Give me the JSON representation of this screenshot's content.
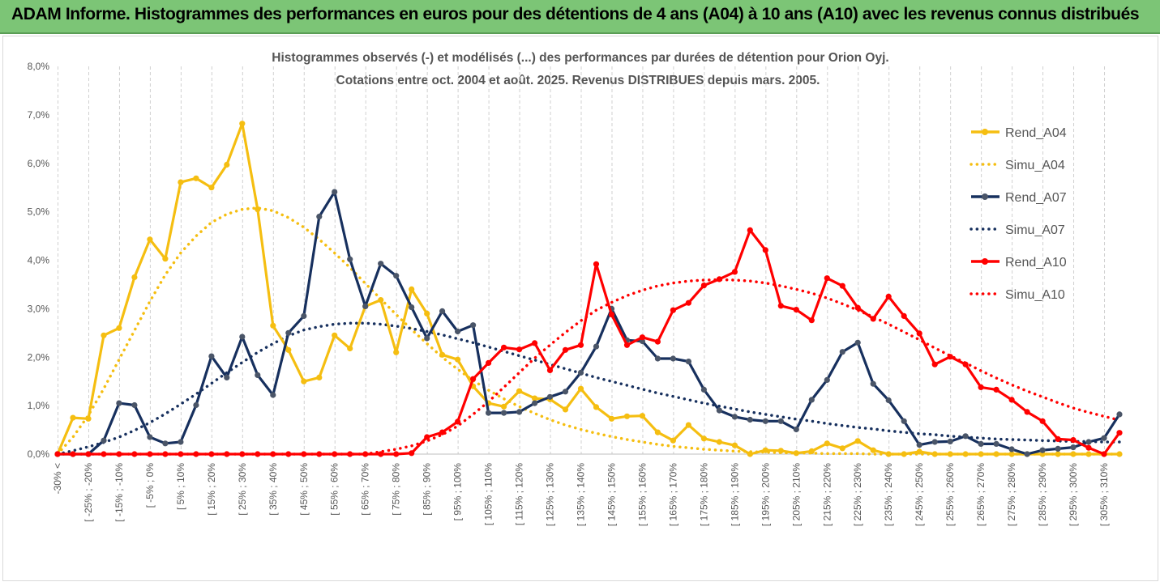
{
  "banner": {
    "title": "ADAM Informe. Histogrammes des performances en euros pour des détentions de 4 ans (A04) à 10 ans (A10) avec les revenus connus distribués"
  },
  "chart_data": {
    "type": "line",
    "title": "Histogrammes observés (-) et modélisés (...) des performances par durées de détention pour Orion Oyj.",
    "subtitle": "Cotations entre oct. 2004 et août. 2025. Revenus DISTRIBUES depuis mars. 2005.",
    "xlabel": "",
    "ylabel": "",
    "ylim": [
      0,
      0.08
    ],
    "y_ticks": [
      "0,0%",
      "1,0%",
      "2,0%",
      "3,0%",
      "4,0%",
      "5,0%",
      "6,0%",
      "7,0%",
      "8,0%"
    ],
    "grid": "vertical dashed",
    "legend_position": "right",
    "x_tick_labels": [
      "-30% <",
      "[ -25% ; -20%",
      "[ -15% ; -10%",
      "[ -5% ; 0%",
      "[ 5% ; 10%",
      "[ 15% ; 20%",
      "[ 25% ; 30%",
      "[ 35% ; 40%",
      "[ 45% ; 50%",
      "[ 55% ; 60%",
      "[ 65% ; 70%",
      "[ 75% ; 80%",
      "[ 85% ; 90%",
      "[ 95% ; 100%",
      "[ 105% ; 110%",
      "[ 115% ; 120%",
      "[ 125% ; 130%",
      "[ 135% ; 140%",
      "[ 145% ; 150%",
      "[ 155% ; 160%",
      "[ 165% ; 170%",
      "[ 175% ; 180%",
      "[ 185% ; 190%",
      "[ 195% ; 200%",
      "[ 205% ; 210%",
      "[ 215% ; 220%",
      "[ 225% ; 230%",
      "[ 235% ; 240%",
      "[ 245% ; 250%",
      "[ 255% ; 260%",
      "[ 265% ; 270%",
      "[ 275% ; 280%",
      "[ 285% ; 290%",
      "[ 295% ; 300%",
      "[ 305% ; 310%"
    ],
    "series": [
      {
        "name": "Rend_A04",
        "style": "solid",
        "color": "#f5be11",
        "values": [
          0.0,
          0.0075,
          0.0073,
          0.0245,
          0.026,
          0.0365,
          0.0443,
          0.0403,
          0.0561,
          0.0569,
          0.055,
          0.0597,
          0.0682,
          0.0505,
          0.0265,
          0.0215,
          0.015,
          0.0158,
          0.0245,
          0.0218,
          0.0305,
          0.0318,
          0.021,
          0.034,
          0.029,
          0.0205,
          0.0195,
          0.014,
          0.0105,
          0.0098,
          0.013,
          0.0115,
          0.0113,
          0.0092,
          0.0135,
          0.0097,
          0.0073,
          0.0078,
          0.0079,
          0.0045,
          0.0028,
          0.006,
          0.0032,
          0.0025,
          0.0018,
          0.0,
          0.0008,
          0.0007,
          0.0002,
          0.0006,
          0.0022,
          0.0012,
          0.0027,
          0.0008,
          0.0,
          0.0,
          0.0005,
          0.0,
          0.0,
          0.0,
          0.0,
          0.0,
          0.0,
          0.0,
          0.0,
          0.0,
          0.0,
          0.0,
          0.0,
          0.0
        ]
      },
      {
        "name": "Simu_A04",
        "style": "dotted",
        "color": "#f5be11",
        "values": [
          0.0,
          0.0035,
          0.008,
          0.0135,
          0.0195,
          0.0255,
          0.0315,
          0.037,
          0.0415,
          0.045,
          0.0478,
          0.0495,
          0.0505,
          0.0508,
          0.0502,
          0.0488,
          0.0468,
          0.0443,
          0.0415,
          0.0385,
          0.0352,
          0.032,
          0.0288,
          0.0257,
          0.0228,
          0.02,
          0.0175,
          0.0152,
          0.0132,
          0.0114,
          0.0098,
          0.0084,
          0.0071,
          0.006,
          0.0051,
          0.0043,
          0.0036,
          0.003,
          0.0025,
          0.002,
          0.0016,
          0.0013,
          0.001,
          0.0008,
          0.0006,
          0.0005,
          0.0004,
          0.0003,
          0.0002,
          0.0002,
          0.0001,
          0.0001,
          0.0001,
          0.0,
          0.0,
          0.0,
          0.0,
          0.0,
          0.0,
          0.0,
          0.0,
          0.0,
          0.0,
          0.0,
          0.0,
          0.0,
          0.0,
          0.0,
          0.0,
          0.0
        ]
      },
      {
        "name": "Rend_A07",
        "style": "solid",
        "color": "#17305e",
        "values": [
          0.0,
          0.0,
          0.0,
          0.0028,
          0.0105,
          0.0101,
          0.0035,
          0.0022,
          0.0025,
          0.0101,
          0.0202,
          0.0158,
          0.0242,
          0.0163,
          0.0122,
          0.025,
          0.0285,
          0.049,
          0.0541,
          0.0402,
          0.0305,
          0.0393,
          0.0368,
          0.0303,
          0.0239,
          0.0295,
          0.0253,
          0.0266,
          0.0085,
          0.0085,
          0.0087,
          0.0105,
          0.0118,
          0.0129,
          0.0168,
          0.0222,
          0.03,
          0.0235,
          0.0233,
          0.0197,
          0.0197,
          0.0191,
          0.0133,
          0.009,
          0.0077,
          0.0071,
          0.0068,
          0.0068,
          0.0051,
          0.0112,
          0.0153,
          0.0211,
          0.023,
          0.0145,
          0.0111,
          0.0068,
          0.0019,
          0.0025,
          0.0026,
          0.0037,
          0.0021,
          0.0021,
          0.001,
          0.0,
          0.0008,
          0.0011,
          0.0014,
          0.0025,
          0.0033,
          0.0082
        ]
      },
      {
        "name": "Simu_A07",
        "style": "dotted",
        "color": "#17305e",
        "values": [
          0.0,
          0.0007,
          0.0015,
          0.0024,
          0.0035,
          0.0049,
          0.0065,
          0.0083,
          0.0103,
          0.0124,
          0.0146,
          0.0168,
          0.0189,
          0.021,
          0.0228,
          0.0244,
          0.0256,
          0.0263,
          0.0268,
          0.027,
          0.027,
          0.0268,
          0.0264,
          0.0259,
          0.0253,
          0.0246,
          0.0238,
          0.023,
          0.0221,
          0.0212,
          0.0203,
          0.0194,
          0.0185,
          0.0176,
          0.0167,
          0.0158,
          0.015,
          0.0142,
          0.0134,
          0.0126,
          0.0119,
          0.0112,
          0.0105,
          0.0099,
          0.0093,
          0.0087,
          0.0082,
          0.0077,
          0.0072,
          0.0068,
          0.0063,
          0.0059,
          0.0055,
          0.0052,
          0.0048,
          0.0045,
          0.0042,
          0.004,
          0.0037,
          0.0035,
          0.0033,
          0.0031,
          0.003,
          0.0029,
          0.0028,
          0.0027,
          0.0026,
          0.0026,
          0.0025,
          0.0025
        ]
      },
      {
        "name": "Rend_A10",
        "style": "solid",
        "color": "#ff0000",
        "values": [
          0.0,
          0.0,
          0.0,
          0.0,
          0.0,
          0.0,
          0.0,
          0.0,
          0.0,
          0.0,
          0.0,
          0.0,
          0.0,
          0.0,
          0.0,
          0.0,
          0.0,
          0.0,
          0.0,
          0.0,
          0.0,
          0.0,
          0.0,
          0.0002,
          0.0035,
          0.0045,
          0.0067,
          0.0155,
          0.0188,
          0.022,
          0.0216,
          0.0229,
          0.0173,
          0.0215,
          0.0225,
          0.0392,
          0.0288,
          0.0225,
          0.0241,
          0.0232,
          0.0297,
          0.0312,
          0.0348,
          0.0361,
          0.0376,
          0.0462,
          0.0421,
          0.0306,
          0.0298,
          0.0276,
          0.0363,
          0.0347,
          0.0302,
          0.0279,
          0.0325,
          0.0285,
          0.0249,
          0.0185,
          0.0201,
          0.0185,
          0.0138,
          0.0133,
          0.0112,
          0.0087,
          0.0068,
          0.0031,
          0.0029,
          0.0013,
          0.0,
          0.0044
        ]
      },
      {
        "name": "Simu_A10",
        "style": "dotted",
        "color": "#ff0000",
        "values": [
          0.0,
          0.0,
          0.0,
          0.0,
          0.0,
          0.0,
          0.0,
          0.0,
          0.0,
          0.0,
          0.0,
          0.0,
          0.0,
          0.0,
          0.0,
          0.0,
          0.0,
          0.0,
          0.0,
          0.0,
          0.0,
          0.0005,
          0.001,
          0.0017,
          0.0027,
          0.004,
          0.0058,
          0.0082,
          0.0108,
          0.0138,
          0.0168,
          0.0198,
          0.0225,
          0.0251,
          0.0275,
          0.0297,
          0.0313,
          0.0327,
          0.0338,
          0.0347,
          0.0353,
          0.0357,
          0.0359,
          0.036,
          0.0359,
          0.0357,
          0.0353,
          0.0347,
          0.034,
          0.0332,
          0.0322,
          0.031,
          0.0297,
          0.0283,
          0.0268,
          0.0252,
          0.0236,
          0.0219,
          0.0203,
          0.0188,
          0.0172,
          0.0157,
          0.0143,
          0.013,
          0.0118,
          0.0106,
          0.0095,
          0.0086,
          0.0078,
          0.007
        ]
      }
    ]
  }
}
